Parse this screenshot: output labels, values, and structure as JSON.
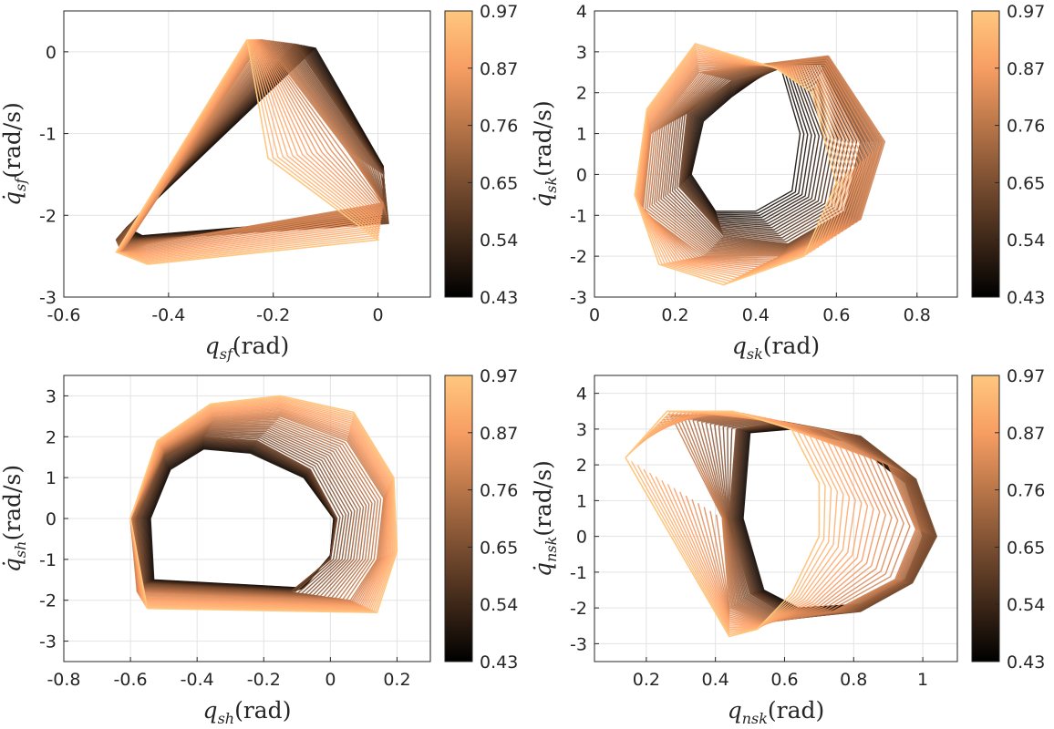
{
  "figure": {
    "colormap": "copper",
    "colormap_stops": [
      "#000000",
      "#3d2718",
      "#7a4e31",
      "#b97649",
      "#f79e63",
      "#ffc77f"
    ]
  },
  "chart_data": [
    {
      "type": "line",
      "plot": "phase-portrait",
      "xlabel": {
        "main": "q",
        "sub": "sf",
        "unit": "(rad)"
      },
      "ylabel": {
        "main": "q̇",
        "sub": "sf",
        "unit": "(rad/s)"
      },
      "xlim": [
        -0.6,
        0.1
      ],
      "ylim": [
        -3,
        0.5
      ],
      "xticks": [
        -0.6,
        -0.4,
        -0.2,
        0
      ],
      "xtick_labels": [
        "-0.6",
        "-0.4",
        "-0.2",
        "0"
      ],
      "yticks": [
        -3,
        -2,
        -1,
        0
      ],
      "ytick_labels": [
        "-3",
        "-2",
        "-1",
        "0"
      ],
      "grid": true,
      "colorbar": {
        "range": [
          0.43,
          0.97
        ],
        "tick_labels": [
          "0.97",
          "0.87",
          "0.76",
          "0.65",
          "0.54",
          "0.43"
        ]
      },
      "series": [
        {
          "color_value": 0.45,
          "x": [
            -0.12,
            0.01,
            0.01,
            -0.45,
            -0.48,
            -0.12
          ],
          "y": [
            0.05,
            -1.4,
            -2.0,
            -2.25,
            -2.15,
            0.05
          ]
        },
        {
          "color_value": 0.62,
          "x": [
            -0.16,
            0.01,
            0.02,
            -0.46,
            -0.5,
            -0.16
          ],
          "y": [
            0.1,
            -1.5,
            -2.1,
            -2.3,
            -2.3,
            0.1
          ]
        },
        {
          "color_value": 0.78,
          "x": [
            -0.22,
            -0.06,
            0.01,
            -0.44,
            -0.49,
            -0.22
          ],
          "y": [
            0.15,
            -1.2,
            -1.85,
            -2.35,
            -2.45,
            0.15
          ]
        },
        {
          "color_value": 0.95,
          "x": [
            -0.25,
            -0.21,
            0.0,
            -0.44,
            -0.5,
            -0.25
          ],
          "y": [
            0.15,
            -1.3,
            -2.3,
            -2.6,
            -2.45,
            0.15
          ]
        }
      ]
    },
    {
      "type": "line",
      "plot": "phase-portrait",
      "xlabel": {
        "main": "q",
        "sub": "sk",
        "unit": "(rad)"
      },
      "ylabel": {
        "main": "q̇",
        "sub": "sk",
        "unit": "(rad/s)"
      },
      "xlim": [
        0,
        0.9
      ],
      "ylim": [
        -3,
        4
      ],
      "xticks": [
        0,
        0.2,
        0.4,
        0.6,
        0.8
      ],
      "xtick_labels": [
        "0",
        "0.2",
        "0.4",
        "0.6",
        "0.8"
      ],
      "yticks": [
        -3,
        -2,
        -1,
        0,
        1,
        2,
        3,
        4
      ],
      "ytick_labels": [
        "-3",
        "-2",
        "-1",
        "0",
        "1",
        "2",
        "3",
        "4"
      ],
      "grid": true,
      "colorbar": {
        "range": [
          0.43,
          0.97
        ],
        "tick_labels": [
          "0.97",
          "0.87",
          "0.76",
          "0.65",
          "0.54",
          "0.43"
        ]
      },
      "series": [
        {
          "color_value": 0.45,
          "x": [
            0.46,
            0.51,
            0.49,
            0.4,
            0.3,
            0.24,
            0.27,
            0.34,
            0.44,
            0.46
          ],
          "y": [
            2.7,
            1.0,
            -0.4,
            -0.9,
            -0.9,
            0.0,
            1.3,
            1.9,
            2.6,
            2.7
          ]
        },
        {
          "color_value": 0.62,
          "x": [
            0.56,
            0.66,
            0.62,
            0.48,
            0.32,
            0.21,
            0.23,
            0.34,
            0.5,
            0.56
          ],
          "y": [
            2.7,
            0.8,
            -0.9,
            -1.7,
            -1.5,
            -0.3,
            1.5,
            2.3,
            2.7,
            2.7
          ]
        },
        {
          "color_value": 0.78,
          "x": [
            0.58,
            0.72,
            0.66,
            0.46,
            0.27,
            0.12,
            0.14,
            0.26,
            0.42,
            0.58
          ],
          "y": [
            2.9,
            0.8,
            -1.1,
            -2.0,
            -2.0,
            -0.9,
            1.0,
            2.5,
            2.7,
            2.9
          ]
        },
        {
          "color_value": 0.95,
          "x": [
            0.54,
            0.6,
            0.52,
            0.32,
            0.16,
            0.1,
            0.13,
            0.25,
            0.45,
            0.54
          ],
          "y": [
            2.0,
            -0.2,
            -2.0,
            -2.7,
            -2.2,
            -0.5,
            1.6,
            3.2,
            2.6,
            2.0
          ]
        }
      ]
    },
    {
      "type": "line",
      "plot": "phase-portrait",
      "xlabel": {
        "main": "q",
        "sub": "sh",
        "unit": "(rad)"
      },
      "ylabel": {
        "main": "q̇",
        "sub": "sh",
        "unit": "(rad/s)"
      },
      "xlim": [
        -0.8,
        0.3
      ],
      "ylim": [
        -3.5,
        3.5
      ],
      "xticks": [
        -0.8,
        -0.6,
        -0.4,
        -0.2,
        0,
        0.2
      ],
      "xtick_labels": [
        "-0.8",
        "-0.6",
        "-0.4",
        "-0.2",
        "0",
        "0.2"
      ],
      "yticks": [
        -3,
        -2,
        -1,
        0,
        1,
        2,
        3
      ],
      "ytick_labels": [
        "-3",
        "-2",
        "-1",
        "0",
        "1",
        "2",
        "3"
      ],
      "grid": true,
      "colorbar": {
        "range": [
          0.43,
          0.97
        ],
        "tick_labels": [
          "0.97",
          "0.87",
          "0.76",
          "0.65",
          "0.54",
          "0.43"
        ]
      },
      "series": [
        {
          "color_value": 0.45,
          "x": [
            -0.53,
            -0.54,
            -0.48,
            -0.38,
            -0.24,
            -0.08,
            0.01,
            0.0,
            -0.08,
            -0.53
          ],
          "y": [
            -1.5,
            0.0,
            1.2,
            1.7,
            1.6,
            1.0,
            0.0,
            -0.9,
            -1.7,
            -1.5
          ]
        },
        {
          "color_value": 0.62,
          "x": [
            -0.56,
            -0.58,
            -0.5,
            -0.38,
            -0.22,
            -0.06,
            0.02,
            0.0,
            -0.12,
            -0.56
          ],
          "y": [
            -1.6,
            0.0,
            1.5,
            2.0,
            1.9,
            1.2,
            0.0,
            -1.0,
            -1.8,
            -1.6
          ]
        },
        {
          "color_value": 0.78,
          "x": [
            -0.58,
            -0.6,
            -0.5,
            -0.35,
            -0.15,
            0.05,
            0.16,
            0.14,
            0.06,
            -0.58
          ],
          "y": [
            -1.8,
            0.0,
            1.7,
            2.4,
            2.5,
            1.9,
            0.5,
            -1.0,
            -2.0,
            -1.8
          ]
        },
        {
          "color_value": 0.95,
          "x": [
            -0.55,
            -0.6,
            -0.52,
            -0.36,
            -0.15,
            0.07,
            0.19,
            0.2,
            0.14,
            -0.55
          ],
          "y": [
            -2.2,
            0.0,
            1.9,
            2.8,
            3.0,
            2.6,
            1.0,
            -0.8,
            -2.3,
            -2.2
          ]
        }
      ]
    },
    {
      "type": "line",
      "plot": "phase-portrait",
      "xlabel": {
        "main": "q",
        "sub": "nsk",
        "unit": "(rad)"
      },
      "ylabel": {
        "main": "q̇",
        "sub": "nsk",
        "unit": "(rad/s)"
      },
      "xlim": [
        0.05,
        1.1
      ],
      "ylim": [
        -3.5,
        4.5
      ],
      "xticks": [
        0.2,
        0.4,
        0.6,
        0.8,
        1
      ],
      "xtick_labels": [
        "0.2",
        "0.4",
        "0.6",
        "0.8",
        "1"
      ],
      "yticks": [
        -3,
        -2,
        -1,
        0,
        1,
        2,
        3,
        4
      ],
      "ytick_labels": [
        "-3",
        "-2",
        "-1",
        "0",
        "1",
        "2",
        "3",
        "4"
      ],
      "grid": true,
      "colorbar": {
        "range": [
          0.43,
          0.97
        ],
        "tick_labels": [
          "0.97",
          "0.87",
          "0.76",
          "0.65",
          "0.54",
          "0.43"
        ]
      },
      "series": [
        {
          "color_value": 0.45,
          "x": [
            0.5,
            0.62,
            0.8,
            0.95,
            1.0,
            0.95,
            0.82,
            0.64,
            0.54,
            0.48,
            0.5
          ],
          "y": [
            2.9,
            3.0,
            2.6,
            1.5,
            0.0,
            -1.2,
            -1.9,
            -2.0,
            -1.5,
            0.5,
            2.9
          ]
        },
        {
          "color_value": 0.62,
          "x": [
            0.46,
            0.6,
            0.82,
            0.98,
            1.04,
            0.97,
            0.82,
            0.62,
            0.5,
            0.44,
            0.46
          ],
          "y": [
            3.0,
            3.2,
            2.8,
            1.6,
            0.0,
            -1.3,
            -2.1,
            -2.3,
            -1.6,
            0.5,
            3.0
          ]
        },
        {
          "color_value": 0.78,
          "x": [
            0.26,
            0.44,
            0.7,
            0.9,
            0.98,
            0.92,
            0.74,
            0.55,
            0.44,
            0.42,
            0.26
          ],
          "y": [
            3.4,
            3.4,
            3.0,
            2.0,
            0.2,
            -1.2,
            -2.1,
            -2.4,
            -2.0,
            0.5,
            3.4
          ]
        },
        {
          "color_value": 0.95,
          "x": [
            0.14,
            0.26,
            0.45,
            0.62,
            0.7,
            0.7,
            0.62,
            0.52,
            0.44,
            0.14
          ],
          "y": [
            2.2,
            3.5,
            3.5,
            3.0,
            1.5,
            0.0,
            -1.6,
            -2.6,
            -2.8,
            2.2
          ]
        }
      ]
    }
  ]
}
